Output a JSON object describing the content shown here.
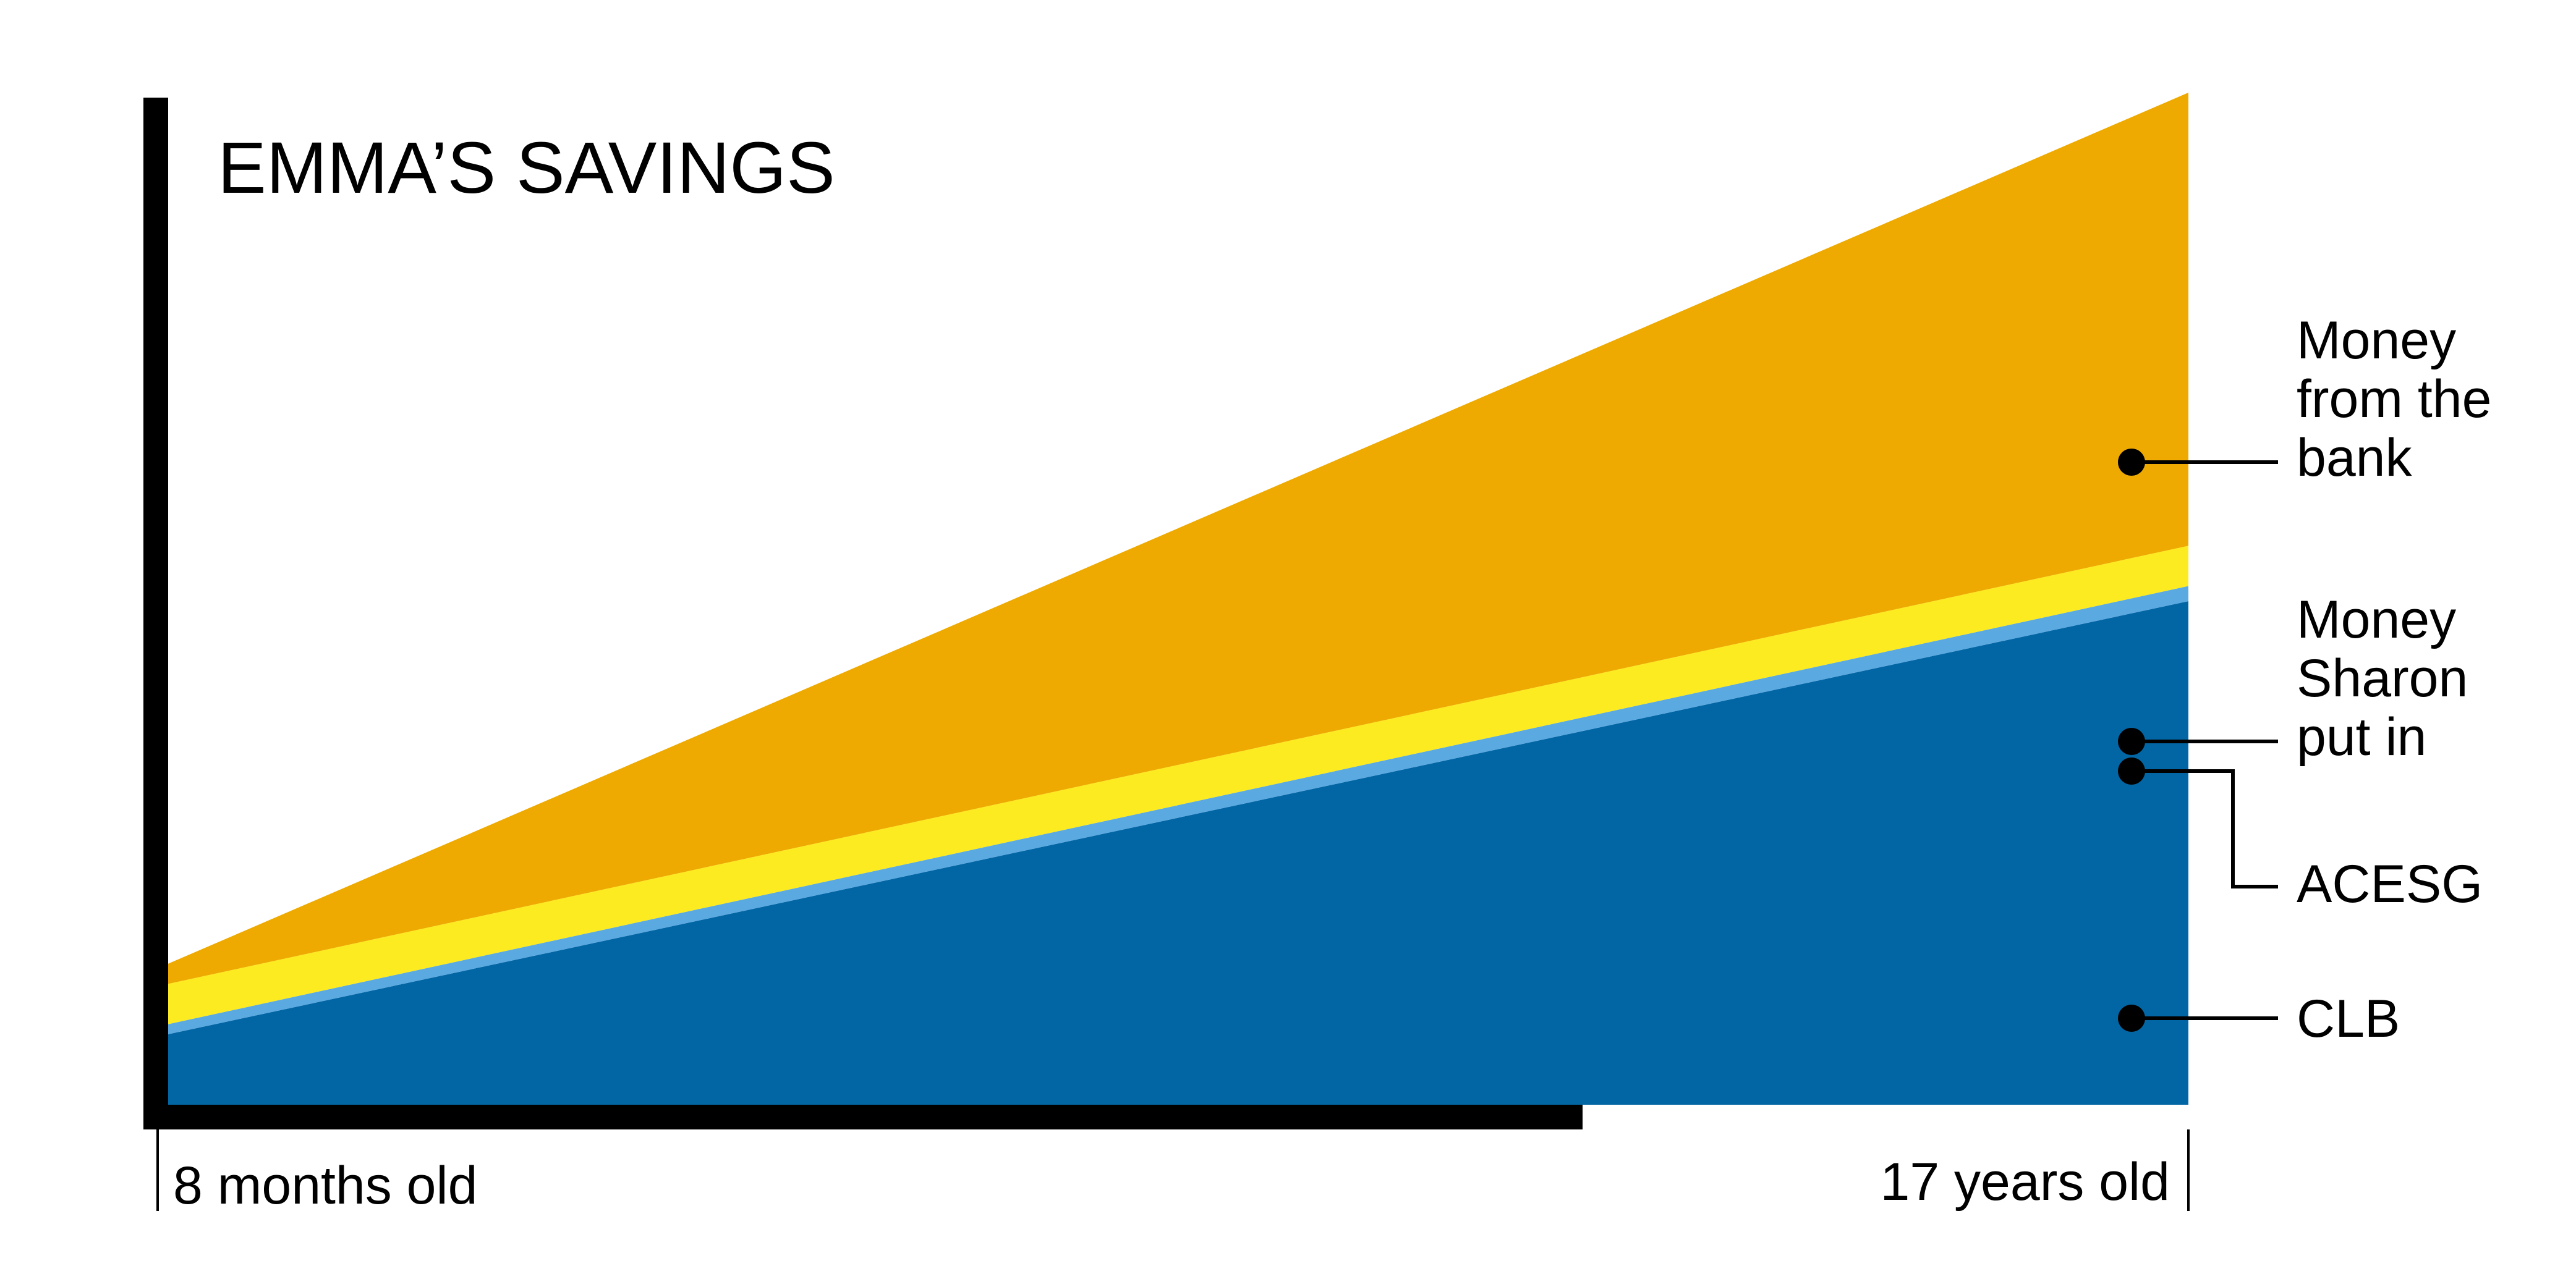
{
  "chart_data": {
    "type": "area",
    "stacked": true,
    "title": "EMMA’S SAVINGS",
    "xlabel": "",
    "ylabel": "",
    "x_tick_labels": [
      "8 months old",
      "17 years old"
    ],
    "x": [
      0,
      1
    ],
    "ylim": [
      0,
      100
    ],
    "grid": false,
    "legend_placement": "right",
    "series": [
      {
        "name": "CLB",
        "values": [
          7,
          50
        ],
        "color": "#0266A5"
      },
      {
        "name": "ACESG",
        "values": [
          1,
          1.5
        ],
        "color": "#5AA9E1"
      },
      {
        "name": "Money Sharon put in",
        "values": [
          4,
          4
        ],
        "color": "#FCEB20"
      },
      {
        "name": "Money from the bank",
        "values": [
          2,
          45
        ],
        "color": "#EEAA00"
      }
    ],
    "legend_lines": {
      "bank": [
        "Money",
        "from the",
        "bank"
      ],
      "sharon": [
        "Money",
        "Sharon",
        "put in"
      ],
      "acesg": [
        "ACESG"
      ],
      "clb": [
        "CLB"
      ]
    }
  }
}
